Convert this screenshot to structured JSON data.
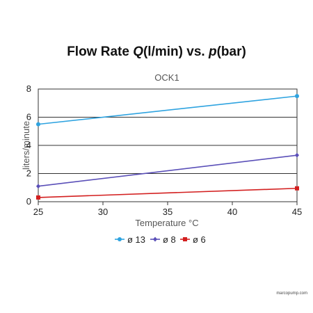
{
  "chart_data": {
    "type": "line",
    "title": {
      "prefix": "Flow Rate ",
      "q": "Q",
      "q_unit": "(l/min) vs. ",
      "p": "p",
      "p_unit": "(bar)"
    },
    "subtitle": "OCK1",
    "xlabel": "Temperature °C",
    "ylabel": "liters/minute",
    "x": [
      25,
      45
    ],
    "xlim": [
      25,
      45
    ],
    "ylim": [
      0,
      8
    ],
    "xticks": [
      25,
      30,
      35,
      40,
      45
    ],
    "yticks": [
      0,
      2,
      4,
      6,
      8
    ],
    "grid": "horizontal",
    "legend_position": "bottom",
    "series": [
      {
        "name": "ø 13",
        "values": [
          5.5,
          7.5
        ],
        "color": "#2ea3e0",
        "marker": "circle"
      },
      {
        "name": "ø 8",
        "values": [
          1.1,
          3.3
        ],
        "color": "#5a4fb8",
        "marker": "diamond"
      },
      {
        "name": "ø 6",
        "values": [
          0.3,
          0.95
        ],
        "color": "#d31f1f",
        "marker": "square"
      }
    ]
  },
  "watermark": "marcopump.com"
}
